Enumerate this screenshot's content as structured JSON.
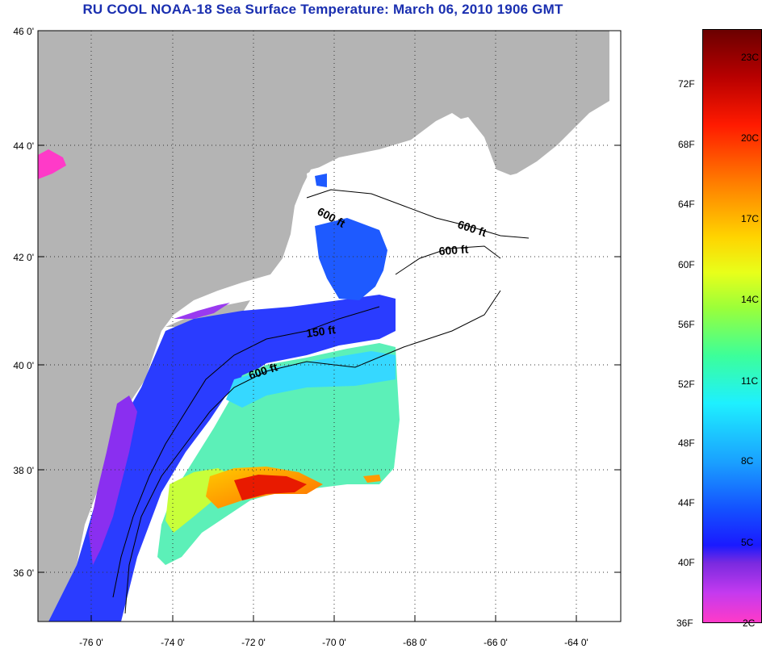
{
  "title": "RU COOL  NOAA-18  Sea Surface Temperature:  March 06, 2010 1906 GMT",
  "map": {
    "lat_ticks": [
      "46 0'",
      "44 0'",
      "42 0'",
      "40 0'",
      "38 0'",
      "36 0'"
    ],
    "lon_ticks": [
      "-76 0'",
      "-74 0'",
      "-72 0'",
      "-70 0'",
      "-68 0'",
      "-66 0'",
      "-64 0'"
    ],
    "contour_labels": [
      "600 ft",
      "600 ft",
      "600 ft",
      "150 ft",
      "600 ft"
    ]
  },
  "colorbar": {
    "fahrenheit": [
      "72F",
      "68F",
      "64F",
      "60F",
      "56F",
      "52F",
      "48F",
      "44F",
      "40F",
      "36F"
    ],
    "celsius": [
      "23C",
      "20C",
      "17C",
      "14C",
      "11C",
      "8C",
      "5C",
      "2C"
    ]
  },
  "colors": {
    "land": "#b4b4b4",
    "ocean_nodata": "#ffffff",
    "title_color": "#1a2fb0"
  }
}
